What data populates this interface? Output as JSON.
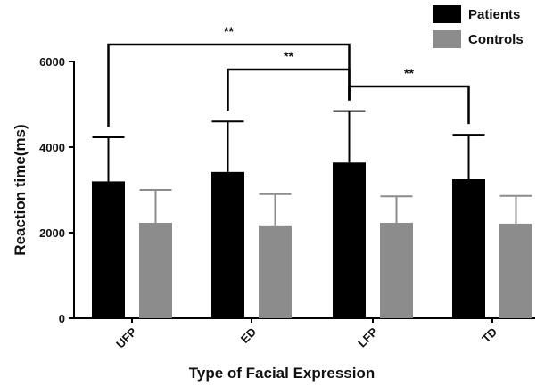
{
  "chart_data": {
    "type": "bar",
    "title": "",
    "xlabel": "Type of Facial Expression",
    "ylabel": "Reaction time(ms)",
    "ylim": [
      0,
      6000
    ],
    "yticks": [
      0,
      2000,
      4000,
      6000
    ],
    "categories": [
      "UFP",
      "ED",
      "LFP",
      "TD"
    ],
    "series": [
      {
        "name": "Patients",
        "color": "#000000",
        "values": [
          3200,
          3420,
          3640,
          3250
        ],
        "error": [
          1030,
          1180,
          1200,
          1040
        ]
      },
      {
        "name": "Controls",
        "color": "#8c8c8c",
        "values": [
          2230,
          2170,
          2230,
          2210
        ],
        "error": [
          770,
          730,
          620,
          650
        ]
      }
    ],
    "legend_position": "top-right",
    "significance": [
      {
        "from": "UFP",
        "to": "LFP",
        "label": "**"
      },
      {
        "from": "ED",
        "to": "LFP",
        "label": "**"
      },
      {
        "from": "LFP",
        "to": "TD",
        "label": "**"
      }
    ],
    "grid": false
  }
}
